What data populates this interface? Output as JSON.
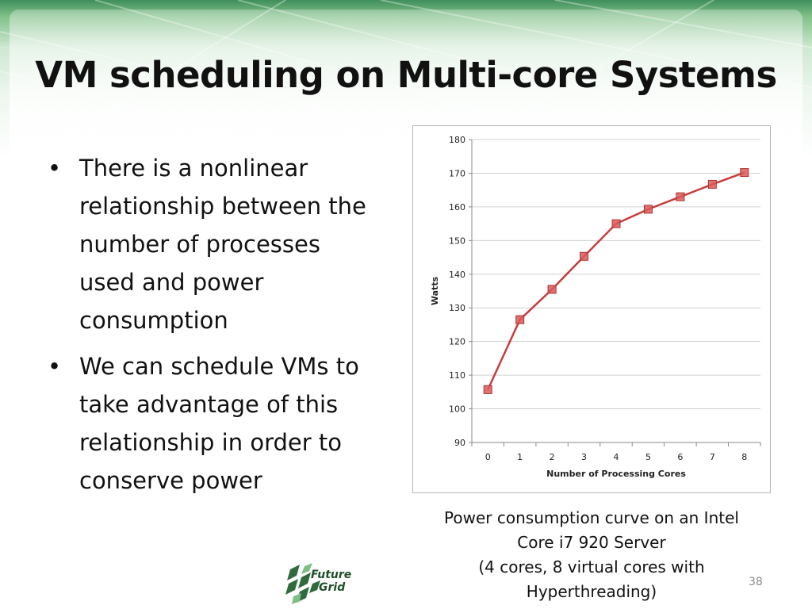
{
  "slide": {
    "title": "VM scheduling on Multi-core Systems",
    "bullets": [
      "There is a nonlinear relationship between the number of processes used and power consumption",
      "We can schedule VMs to take advantage of this relationship in order to conserve power"
    ],
    "caption_lines": [
      "Power consumption curve on an Intel",
      "Core i7 920 Server",
      "(4 cores, 8 virtual cores with",
      "Hyperthreading)"
    ],
    "page_number": "38",
    "logo_text": [
      "Future",
      "Grid"
    ]
  },
  "colors": {
    "line": "#c83c3c",
    "marker": "#d95b5b",
    "grid": "#d0d0d0",
    "header_green": "#3f8f5c"
  },
  "chart_data": {
    "type": "line",
    "x": [
      0,
      1,
      2,
      3,
      4,
      5,
      6,
      7,
      8
    ],
    "series": [
      {
        "values": [
          105.7,
          126.5,
          135.5,
          145.3,
          155.0,
          159.3,
          163.0,
          166.7,
          170.2
        ]
      }
    ],
    "xlabel": "Number of Processing Cores",
    "ylabel": "Watts",
    "ylim": [
      90,
      180
    ],
    "yticks": [
      90,
      100,
      110,
      120,
      130,
      140,
      150,
      160,
      170,
      180
    ],
    "xticks": [
      "0",
      "1",
      "2",
      "3",
      "4",
      "5",
      "6",
      "7",
      "8"
    ],
    "grid": true,
    "legend": "none"
  }
}
